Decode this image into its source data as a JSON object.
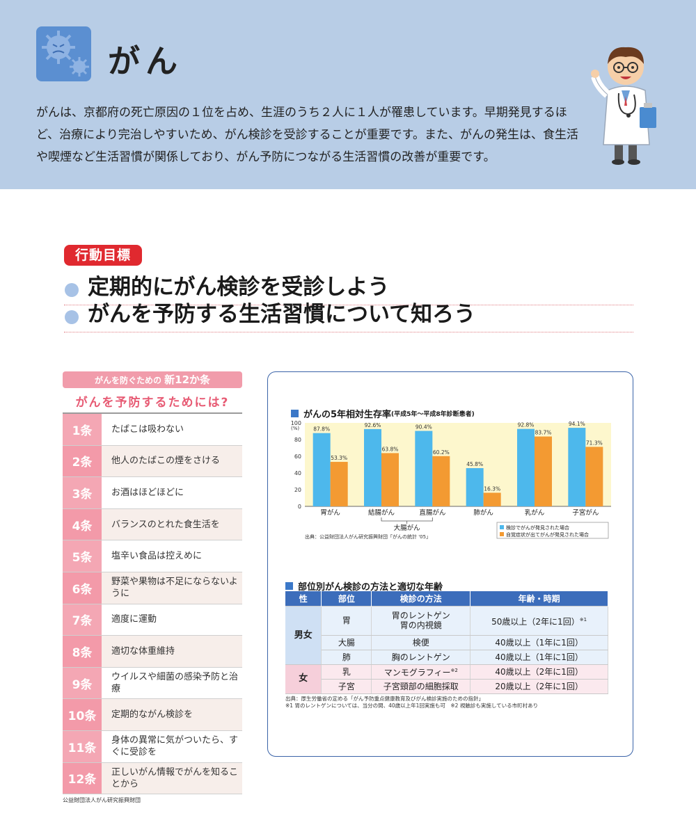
{
  "header": {
    "title": "がん",
    "intro": "がんは、京都府の死亡原因の１位を占め、生涯のうち２人に１人が罹患しています。早期発見するほど、治療により完治しやすいため、がん検診を受診することが重要です。また、がんの発生は、食生活や喫煙など生活習慣が関係しており、がん予防につながる生活習慣の改善が重要です。",
    "icon": "virus-icon",
    "illustration": "doctor-illustration"
  },
  "goals": {
    "badge": "行動目標",
    "items": [
      "定期的にがん検診を受診しよう",
      "がんを予防する生活習慣について知ろう"
    ]
  },
  "rules": {
    "head_prefix": "がんを防ぐための",
    "head_emph": "新12か条",
    "subtitle": "がんを予防するためには?",
    "items": [
      {
        "num": "1条",
        "text": "たばこは吸わない"
      },
      {
        "num": "2条",
        "text": "他人のたばこの煙をさける"
      },
      {
        "num": "3条",
        "text": "お酒はほどほどに"
      },
      {
        "num": "4条",
        "text": "バランスのとれた食生活を"
      },
      {
        "num": "5条",
        "text": "塩辛い食品は控えめに"
      },
      {
        "num": "6条",
        "text": "野菜や果物は不足にならないように"
      },
      {
        "num": "7条",
        "text": "適度に運動"
      },
      {
        "num": "8条",
        "text": "適切な体重維持"
      },
      {
        "num": "9条",
        "text": "ウイルスや細菌の感染予防と治療"
      },
      {
        "num": "10条",
        "text": "定期的ながん検診を"
      },
      {
        "num": "11条",
        "text": "身体の異常に気がついたら、すぐに受診を"
      },
      {
        "num": "12条",
        "text": "正しいがん情報でがんを知ることから"
      }
    ],
    "source": "公益財団法人がん研究振興財団"
  },
  "chart_section": {
    "title": "がんの5年相対生存率",
    "title_small": "(平成5年〜平成8年診断患者)",
    "source": "出典：公益財団法人がん研究振興財団「がんの統計 '05」",
    "group_label": "大腸がん"
  },
  "chart_data": {
    "type": "bar",
    "categories": [
      "胃がん",
      "結腸がん",
      "直腸がん",
      "肺がん",
      "乳がん",
      "子宮がん"
    ],
    "series": [
      {
        "name": "検診でがんが発見された場合",
        "color": "#4db8ec",
        "values": [
          87.8,
          92.6,
          90.4,
          45.8,
          92.8,
          94.1
        ]
      },
      {
        "name": "自覚症状が出てがんが発見された場合",
        "color": "#f39a32",
        "values": [
          53.3,
          63.8,
          60.2,
          16.3,
          83.7,
          71.3
        ]
      }
    ],
    "ylabel": "(%)",
    "ylim": [
      0,
      100
    ],
    "yticks": [
      0,
      20,
      40,
      60,
      80,
      100
    ],
    "legend": "bottom-right",
    "background": "#fdf7cd"
  },
  "table_section": {
    "title": "部位別がん検診の方法と適切な年齢",
    "headers": [
      "性",
      "部位",
      "検診の方法",
      "年齢・時期"
    ],
    "male_label": "男女",
    "female_label": "女",
    "rows": [
      {
        "site": "胃",
        "method": "胃のレントゲン\n胃の内視鏡",
        "age": "50歳以上（2年に1回）",
        "note": "※1"
      },
      {
        "site": "大腸",
        "method": "検便",
        "age": "40歳以上（1年に1回）",
        "note": ""
      },
      {
        "site": "肺",
        "method": "胸のレントゲン",
        "age": "40歳以上（1年に1回）",
        "note": ""
      },
      {
        "site": "乳",
        "method": "マンモグラフィー",
        "method_note": "※2",
        "age": "40歳以上（2年に1回）",
        "note": ""
      },
      {
        "site": "子宮",
        "method": "子宮頸部の細胞採取",
        "age": "20歳以上（2年に1回）",
        "note": ""
      }
    ],
    "source": "出典：厚生労働省の定める「がん予防重点健康教育及びがん検診実施のための指針」",
    "footnote": "※1 胃のレントゲンについては、当分の間、40歳以上年1回実施も可　※2 視触診も実施している市町村あり"
  }
}
